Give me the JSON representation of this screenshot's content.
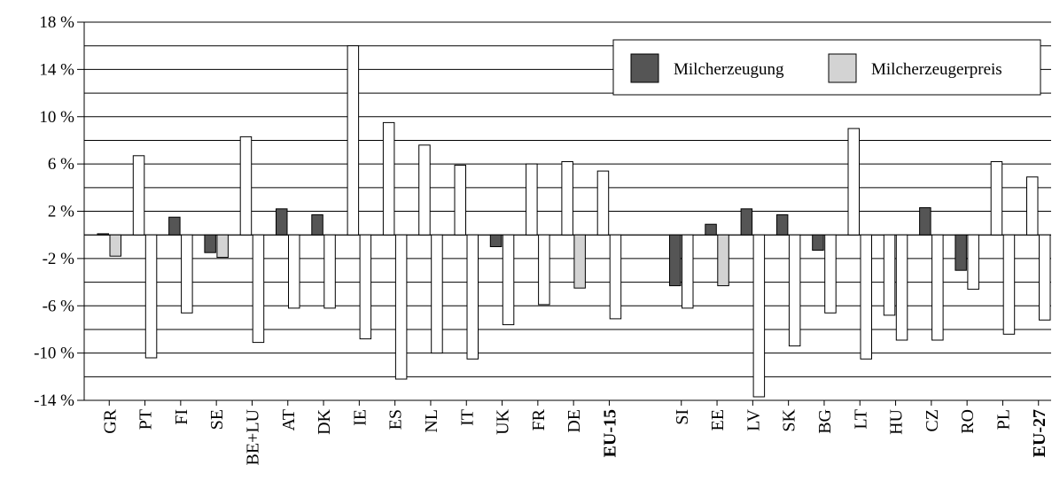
{
  "chart_data": {
    "type": "bar",
    "title": "",
    "xlabel": "",
    "ylabel": "",
    "ylim": [
      -14,
      18
    ],
    "y_ticks": [
      18,
      14,
      10,
      6,
      2,
      -2,
      -6,
      -10,
      -14
    ],
    "y_tick_labels": [
      "18 %",
      "14 %",
      "10 %",
      "6 %",
      "2 %",
      "-2 %",
      "-6 %",
      "-10 %",
      "-14 %"
    ],
    "grid": "horizontal",
    "legend_position": "top-right",
    "legend": [
      {
        "name": "Milcherzeugung",
        "color": "#555555"
      },
      {
        "name": "Milcherzeugerpreis",
        "color": "#d3d3d3"
      }
    ],
    "categories": [
      "GR",
      "PT",
      "FI",
      "SE",
      "BE+LU",
      "AT",
      "DK",
      "IE",
      "ES",
      "NL",
      "IT",
      "UK",
      "FR",
      "DE",
      "EU-15",
      "SI",
      "EE",
      "LV",
      "SK",
      "BG",
      "LT",
      "HU",
      "CZ",
      "RO",
      "PL",
      "EU-27"
    ],
    "bold_categories": [
      "EU-15",
      "EU-27"
    ],
    "gap_after_index": 14,
    "bars": [
      [
        {
          "value": 0.1,
          "fill": "#555555"
        },
        {
          "value": -1.8,
          "fill": "#d3d3d3"
        }
      ],
      [
        {
          "value": 6.7,
          "fill": "#ffffff"
        },
        {
          "value": -10.4,
          "fill": "#ffffff"
        }
      ],
      [
        {
          "value": 1.5,
          "fill": "#555555"
        },
        {
          "value": -6.6,
          "fill": "#ffffff"
        }
      ],
      [
        {
          "value": -1.5,
          "fill": "#555555"
        },
        {
          "value": -1.9,
          "fill": "#d3d3d3"
        }
      ],
      [
        {
          "value": 8.3,
          "fill": "#ffffff"
        },
        {
          "value": -9.1,
          "fill": "#ffffff"
        }
      ],
      [
        {
          "value": 2.2,
          "fill": "#555555"
        },
        {
          "value": -6.2,
          "fill": "#ffffff"
        }
      ],
      [
        {
          "value": 1.7,
          "fill": "#555555"
        },
        {
          "value": -6.2,
          "fill": "#ffffff"
        }
      ],
      [
        {
          "value": 16.0,
          "fill": "#ffffff"
        },
        {
          "value": -8.8,
          "fill": "#ffffff"
        }
      ],
      [
        {
          "value": 9.5,
          "fill": "#ffffff"
        },
        {
          "value": -12.2,
          "fill": "#ffffff"
        }
      ],
      [
        {
          "value": 7.6,
          "fill": "#ffffff"
        },
        {
          "value": -10.0,
          "fill": "#ffffff"
        }
      ],
      [
        {
          "value": 5.9,
          "fill": "#ffffff"
        },
        {
          "value": -10.5,
          "fill": "#ffffff"
        }
      ],
      [
        {
          "value": -1.0,
          "fill": "#555555"
        },
        {
          "value": -7.6,
          "fill": "#ffffff"
        }
      ],
      [
        {
          "value": 6.0,
          "fill": "#ffffff"
        },
        {
          "value": -5.9,
          "fill": "#ffffff"
        }
      ],
      [
        {
          "value": 6.2,
          "fill": "#ffffff"
        },
        {
          "value": -4.5,
          "fill": "#d3d3d3"
        }
      ],
      [
        {
          "value": 5.4,
          "fill": "#ffffff"
        },
        {
          "value": -7.1,
          "fill": "#ffffff"
        }
      ],
      [
        {
          "value": -4.3,
          "fill": "#555555"
        },
        {
          "value": -6.2,
          "fill": "#ffffff"
        }
      ],
      [
        {
          "value": 0.9,
          "fill": "#555555"
        },
        {
          "value": -4.3,
          "fill": "#d3d3d3"
        }
      ],
      [
        {
          "value": 2.2,
          "fill": "#555555"
        },
        {
          "value": -13.7,
          "fill": "#ffffff"
        }
      ],
      [
        {
          "value": 1.7,
          "fill": "#555555"
        },
        {
          "value": -9.4,
          "fill": "#ffffff"
        }
      ],
      [
        {
          "value": -1.3,
          "fill": "#555555"
        },
        {
          "value": -6.6,
          "fill": "#ffffff"
        }
      ],
      [
        {
          "value": 9.0,
          "fill": "#ffffff"
        },
        {
          "value": -10.5,
          "fill": "#ffffff"
        }
      ],
      [
        {
          "value": -6.8,
          "fill": "#ffffff"
        },
        {
          "value": -8.9,
          "fill": "#ffffff"
        }
      ],
      [
        {
          "value": 2.3,
          "fill": "#555555"
        },
        {
          "value": -8.9,
          "fill": "#ffffff"
        }
      ],
      [
        {
          "value": -3.0,
          "fill": "#555555"
        },
        {
          "value": -4.6,
          "fill": "#ffffff"
        }
      ],
      [
        {
          "value": 6.2,
          "fill": "#ffffff"
        },
        {
          "value": -8.4,
          "fill": "#ffffff"
        }
      ],
      [
        {
          "value": 4.9,
          "fill": "#ffffff"
        },
        {
          "value": -7.2,
          "fill": "#ffffff"
        }
      ]
    ]
  }
}
